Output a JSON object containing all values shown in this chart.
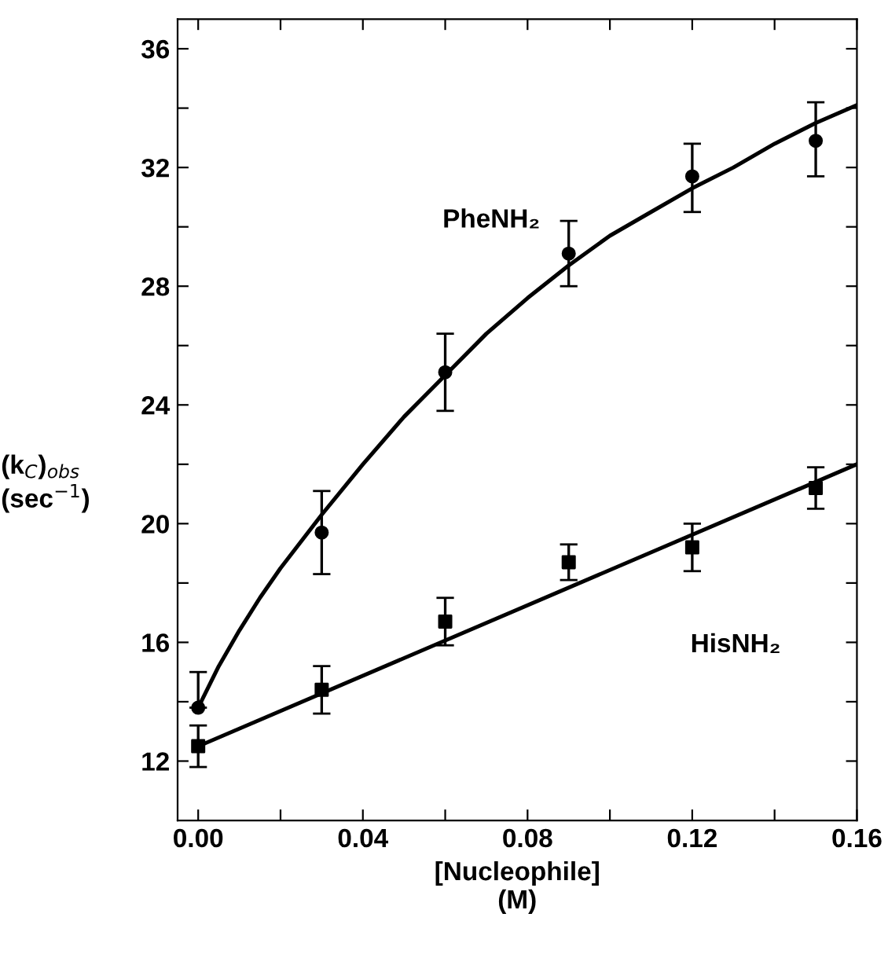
{
  "chart_data": {
    "type": "scatter",
    "xlabel": "[Nucleophile]\n(M)",
    "ylabel": "(k$_{C}$)$_{obs}$\n(sec$^{−1}$)",
    "xlim": [
      -0.005,
      0.16
    ],
    "ylim": [
      10,
      37
    ],
    "xticks": [
      {
        "value": 0,
        "label": "0.00"
      },
      {
        "value": 0.02,
        "label": null
      },
      {
        "value": 0.04,
        "label": "0.04"
      },
      {
        "value": 0.06,
        "label": null
      },
      {
        "value": 0.08,
        "label": "0.08"
      },
      {
        "value": 0.1,
        "label": null
      },
      {
        "value": 0.12,
        "label": "0.12"
      },
      {
        "value": 0.14,
        "label": null
      },
      {
        "value": 0.16,
        "label": "0.16"
      }
    ],
    "yticks": [
      12,
      {
        "value": 14,
        "label": null
      },
      16,
      {
        "value": 18,
        "label": null
      },
      20,
      {
        "value": 22,
        "label": null
      },
      24,
      {
        "value": 26,
        "label": null
      },
      28,
      {
        "value": 30,
        "label": null
      },
      32,
      {
        "value": 34,
        "label": null
      },
      36
    ],
    "grid": false,
    "legend": false,
    "series": [
      {
        "marker": "circle",
        "color": "#000000",
        "x": [
          0,
          0.03,
          0.06,
          0.09,
          0.12,
          0.15
        ],
        "values": [
          13.8,
          19.7,
          25.1,
          29.1,
          31.7,
          32.9
        ],
        "errors": [
          [
            13.8,
            15.0
          ],
          [
            18.3,
            21.1
          ],
          [
            23.8,
            26.4
          ],
          [
            28.0,
            30.2
          ],
          [
            30.5,
            32.8
          ],
          [
            31.7,
            34.2
          ]
        ]
      },
      {
        "marker": "square",
        "color": "#000000",
        "x": [
          0,
          0.03,
          0.06,
          0.09,
          0.12,
          0.15
        ],
        "values": [
          12.5,
          14.4,
          16.7,
          18.7,
          19.2,
          21.2
        ],
        "errors": [
          [
            11.8,
            13.2
          ],
          [
            13.6,
            15.2
          ],
          [
            15.9,
            17.5
          ],
          [
            18.1,
            19.3
          ],
          [
            18.4,
            20.0
          ],
          [
            20.5,
            21.9
          ]
        ]
      },
      {
        "type": "line",
        "marker": "none",
        "line_style": "solid",
        "color": "#000000",
        "x": [
          0,
          0.005,
          0.01,
          0.015,
          0.02,
          0.03,
          0.04,
          0.05,
          0.06,
          0.07,
          0.08,
          0.09,
          0.1,
          0.11,
          0.12,
          0.13,
          0.14,
          0.15,
          0.16
        ],
        "values": [
          13.8,
          15.2,
          16.4,
          17.5,
          18.5,
          20.3,
          22.0,
          23.6,
          25.0,
          26.4,
          27.6,
          28.7,
          29.7,
          30.5,
          31.3,
          32.0,
          32.8,
          33.5,
          34.1
        ]
      },
      {
        "type": "line",
        "marker": "none",
        "line_style": "solid",
        "color": "#000000",
        "x": [
          0,
          0.16
        ],
        "values": [
          12.5,
          22.0
        ]
      }
    ],
    "annotations": [
      "PheNH₂",
      "HisNH₂"
    ]
  }
}
